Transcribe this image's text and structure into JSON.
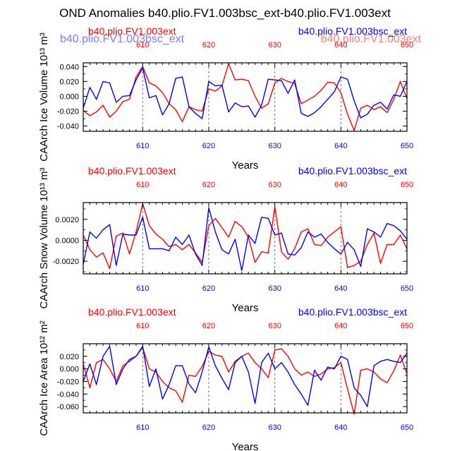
{
  "page_title": "OND Anomalies b40.plio.FV1.003bsc_ext-b40.plio.FV1.003ext",
  "overlay_legend": {
    "left": "b40.plio.FV1.003bsc_ext",
    "right": "b40.plio.FV1.003ext"
  },
  "colors": {
    "series_red": "#ff0000",
    "series_blue": "#0000ff",
    "axis": "#000000",
    "dashed": "#555555"
  },
  "chart_data": [
    {
      "type": "line",
      "title": "",
      "xlabel": "Years",
      "ylabel": "CAArch Ice Volume 10¹³ m³",
      "xlim": [
        601,
        650
      ],
      "ylim": [
        -0.047,
        0.045
      ],
      "top_ticks": [
        "610",
        "620",
        "630",
        "640",
        "650"
      ],
      "bottom_ticks": [
        "610",
        "620",
        "630",
        "640",
        "650"
      ],
      "x_tick_values": [
        610,
        620,
        630,
        640,
        650
      ],
      "dashed_lines_at": [
        610,
        620,
        630,
        640
      ],
      "y_ticks": [
        {
          "value": 0.04,
          "label": "0.040"
        },
        {
          "value": 0.02,
          "label": "0.020"
        },
        {
          "value": 0.0,
          "label": "0.000"
        },
        {
          "value": -0.02,
          "label": "-0.020"
        },
        {
          "value": -0.04,
          "label": "-0.040"
        }
      ],
      "legend": {
        "left": "b40.plio.FV1.003ext",
        "right": "b40.plio.FV1.003bsc_ext"
      },
      "x": [
        601,
        602,
        603,
        604,
        605,
        606,
        607,
        608,
        609,
        610,
        611,
        612,
        613,
        614,
        615,
        616,
        617,
        618,
        619,
        620,
        621,
        622,
        623,
        624,
        625,
        626,
        627,
        628,
        629,
        630,
        631,
        632,
        633,
        634,
        635,
        636,
        637,
        638,
        639,
        640,
        641,
        642,
        643,
        644,
        645,
        646,
        647,
        648,
        649,
        650
      ],
      "series": [
        {
          "name": "b40.plio.FV1.003ext",
          "color": "red",
          "values": [
            -0.019,
            -0.026,
            -0.021,
            -0.012,
            -0.028,
            -0.02,
            -0.007,
            -0.004,
            0.026,
            0.04,
            0.018,
            0.014,
            0.005,
            -0.01,
            -0.018,
            -0.034,
            -0.014,
            -0.018,
            -0.02,
            0.01,
            0.007,
            0.014,
            0.044,
            0.022,
            0.023,
            0.021,
            0.0,
            -0.016,
            -0.01,
            0.018,
            0.024,
            0.02,
            0.017,
            -0.01,
            -0.005,
            0.0,
            0.008,
            0.019,
            0.018,
            0.005,
            -0.024,
            -0.046,
            -0.016,
            -0.012,
            -0.018,
            -0.014,
            -0.022,
            -0.004,
            0.02,
            -0.003
          ]
        },
        {
          "name": "b40.plio.FV1.003bsc_ext",
          "color": "blue",
          "values": [
            -0.016,
            0.012,
            -0.004,
            0.02,
            0.018,
            -0.008,
            0.0,
            0.001,
            0.022,
            0.038,
            -0.002,
            0.001,
            -0.025,
            -0.01,
            0.024,
            0.026,
            -0.014,
            -0.023,
            -0.03,
            0.02,
            0.014,
            0.015,
            -0.021,
            -0.009,
            -0.014,
            -0.013,
            -0.028,
            -0.012,
            0.023,
            0.022,
            0.021,
            0.004,
            0.022,
            -0.023,
            -0.027,
            -0.022,
            -0.014,
            -0.004,
            0.006,
            0.026,
            0.023,
            -0.006,
            -0.029,
            -0.024,
            -0.012,
            -0.008,
            -0.017,
            0.002,
            0.0,
            0.02
          ]
        }
      ]
    },
    {
      "type": "line",
      "title": "",
      "xlabel": "Years",
      "ylabel": "CAArch Snow Volume 10¹³ m³",
      "xlim": [
        601,
        650
      ],
      "ylim": [
        -0.0032,
        0.0036
      ],
      "top_ticks": [
        "610",
        "620",
        "630",
        "640",
        "650"
      ],
      "bottom_ticks": [
        "610",
        "620",
        "630",
        "640",
        "650"
      ],
      "x_tick_values": [
        610,
        620,
        630,
        640,
        650
      ],
      "dashed_lines_at": [
        610,
        620,
        630,
        640
      ],
      "y_ticks": [
        {
          "value": 0.002,
          "label": "0.0020"
        },
        {
          "value": 0.0,
          "label": "0.0000"
        },
        {
          "value": -0.002,
          "label": "-0.0020"
        }
      ],
      "legend": {
        "left": "b40.plio.FV1.003ext",
        "right": "b40.plio.FV1.003bsc_ext"
      },
      "x": [
        601,
        602,
        603,
        604,
        605,
        606,
        607,
        608,
        609,
        610,
        611,
        612,
        613,
        614,
        615,
        616,
        617,
        618,
        619,
        620,
        621,
        622,
        623,
        624,
        625,
        626,
        627,
        628,
        629,
        630,
        631,
        632,
        633,
        634,
        635,
        636,
        637,
        638,
        639,
        640,
        641,
        642,
        643,
        644,
        645,
        646,
        647,
        648,
        649,
        650
      ],
      "series": [
        {
          "name": "b40.plio.FV1.003ext",
          "color": "red",
          "values": [
            0.0005,
            -0.0009,
            -0.0016,
            -0.0012,
            -0.0027,
            0.0004,
            0.0007,
            -0.0013,
            0.0008,
            0.0035,
            0.0014,
            0.0006,
            0.0001,
            -0.0006,
            -0.0004,
            -0.0009,
            -0.0004,
            -0.0012,
            -0.0021,
            0.0014,
            0.0021,
            0.0012,
            0.0003,
            0.0018,
            0.0013,
            0.0003,
            -0.0021,
            -0.0011,
            -0.0012,
            0.0032,
            -0.0011,
            -0.0018,
            -0.0008,
            0.0008,
            0.0011,
            -0.0004,
            -0.0005,
            0.0003,
            0.0008,
            0.0013,
            -0.0026,
            -0.0024,
            -0.002,
            -0.0004,
            0.0007,
            -0.0022,
            -0.0004,
            -0.0004,
            0.0005,
            -0.0008
          ]
        },
        {
          "name": "b40.plio.FV1.003bsc_ext",
          "color": "blue",
          "values": [
            -0.0023,
            0.0008,
            0.0002,
            0.001,
            0.0015,
            -0.0024,
            0.0006,
            0.0005,
            0.0005,
            0.0022,
            -0.0008,
            -0.0008,
            -0.0008,
            -0.001,
            0.0003,
            -0.0004,
            0.0005,
            -0.0013,
            -0.0024,
            0.0031,
            0.0008,
            -0.0009,
            -0.0013,
            0.0001,
            -0.0029,
            0.0005,
            -0.0003,
            0.0022,
            0.0021,
            0.0005,
            0.0007,
            -0.0013,
            -0.0014,
            -0.0007,
            0.0008,
            0.0003,
            0.0006,
            -0.0002,
            -0.0008,
            -0.0013,
            -0.0002,
            -0.0009,
            -0.0025,
            0.0011,
            0.0008,
            0.0003,
            0.0016,
            0.0014,
            0.0009,
            0.0001
          ]
        }
      ]
    },
    {
      "type": "line",
      "title": "",
      "xlabel": "Years",
      "ylabel": "CAArch Ice Area 10¹² m²",
      "xlim": [
        601,
        650
      ],
      "ylim": [
        -0.07,
        0.04
      ],
      "top_ticks": [
        "610",
        "620",
        "630",
        "640",
        "650"
      ],
      "bottom_ticks": [
        "610",
        "620",
        "630",
        "640",
        "650"
      ],
      "x_tick_values": [
        610,
        620,
        630,
        640,
        650
      ],
      "dashed_lines_at": [
        610,
        620,
        630,
        640
      ],
      "y_ticks": [
        {
          "value": 0.02,
          "label": "0.020"
        },
        {
          "value": 0.0,
          "label": "0.000"
        },
        {
          "value": -0.02,
          "label": "-0.020"
        },
        {
          "value": -0.04,
          "label": "-0.040"
        },
        {
          "value": -0.06,
          "label": "-0.060"
        }
      ],
      "legend": {
        "left": "b40.plio.FV1.003ext",
        "right": "b40.plio.FV1.003bsc_ext"
      },
      "x": [
        601,
        602,
        603,
        604,
        605,
        606,
        607,
        608,
        609,
        610,
        611,
        612,
        613,
        614,
        615,
        616,
        617,
        618,
        619,
        620,
        621,
        622,
        623,
        624,
        625,
        626,
        627,
        628,
        629,
        630,
        631,
        632,
        633,
        634,
        635,
        636,
        637,
        638,
        639,
        640,
        641,
        642,
        643,
        644,
        645,
        646,
        647,
        648,
        649,
        650
      ],
      "series": [
        {
          "name": "b40.plio.FV1.003ext",
          "color": "red",
          "values": [
            0.008,
            -0.03,
            0.01,
            0.015,
            0.0,
            -0.02,
            0.005,
            0.012,
            0.02,
            0.034,
            0.0,
            -0.005,
            -0.02,
            -0.03,
            -0.035,
            -0.053,
            -0.01,
            -0.012,
            0.004,
            0.028,
            0.022,
            0.02,
            -0.005,
            0.012,
            0.02,
            0.025,
            0.01,
            0.0,
            -0.014,
            0.03,
            0.032,
            0.02,
            0.0,
            -0.01,
            -0.005,
            -0.012,
            -0.008,
            0.0,
            0.002,
            0.01,
            -0.032,
            -0.072,
            -0.002,
            0.0,
            -0.005,
            -0.016,
            -0.022,
            -0.003,
            0.022,
            -0.008
          ]
        },
        {
          "name": "b40.plio.FV1.003bsc_ext",
          "color": "blue",
          "values": [
            -0.02,
            0.008,
            -0.025,
            0.02,
            0.036,
            -0.025,
            0.0,
            0.015,
            0.02,
            0.036,
            -0.028,
            0.0,
            -0.048,
            -0.025,
            0.005,
            0.005,
            -0.024,
            -0.038,
            -0.005,
            0.035,
            0.005,
            -0.015,
            -0.033,
            0.01,
            0.02,
            -0.005,
            -0.055,
            0.01,
            0.025,
            0.0,
            0.01,
            -0.005,
            -0.025,
            -0.04,
            -0.058,
            -0.002,
            -0.018,
            0.003,
            0.0,
            0.02,
            0.015,
            -0.03,
            -0.042,
            -0.06,
            0.005,
            0.012,
            0.015,
            0.012,
            0.01,
            0.025
          ]
        }
      ]
    }
  ]
}
